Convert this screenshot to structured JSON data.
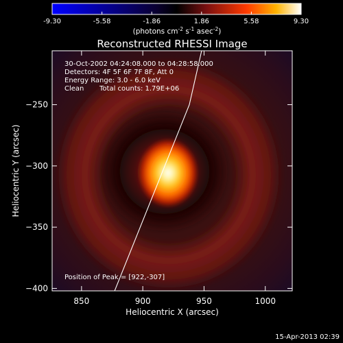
{
  "colorbar": {
    "ticks": [
      "-9.30",
      "-5.58",
      "-1.86",
      "1.86",
      "5.58",
      "9.30"
    ],
    "unit_label": {
      "pre": "(photons cm",
      "sup1": "-2",
      "mid": " s",
      "sup2": "-1",
      "mid2": " asec",
      "sup3": "-2",
      "post": ")"
    },
    "range": [
      -9.3,
      9.3
    ],
    "colors": [
      "#0000ff",
      "#000000",
      "#7a1010",
      "#ff3a00",
      "#ffb300",
      "#ffffff"
    ]
  },
  "annotations": {
    "line1": "30-Oct-2002 04:24:08.000 to 04:28:58.000",
    "line2": "Detectors: 4F 5F 6F 7F 8F, Att 0",
    "line3": "Energy Range: 3.0 - 6.0 keV",
    "line4_a": "Clean",
    "line4_b": "Total counts: 1.79E+06",
    "peak": "Position of Peak = [922,-307]"
  },
  "timestamp": "15-Apr-2013 02:39",
  "chart_data": {
    "type": "heatmap",
    "title": "Reconstructed RHESSI Image",
    "xlabel": "Heliocentric X (arcsec)",
    "ylabel": "Heliocentric Y (arcsec)",
    "xlim": [
      826,
      1022
    ],
    "ylim": [
      -402,
      -206
    ],
    "x_ticks": [
      850,
      900,
      950,
      1000
    ],
    "y_ticks": [
      -250,
      -300,
      -350,
      -400
    ],
    "x_tick_labels": [
      "850",
      "900",
      "950",
      "1000"
    ],
    "y_tick_labels": [
      "−250",
      "−300",
      "−350",
      "−400"
    ],
    "peak_position": [
      922,
      -307
    ],
    "limb_line": [
      [
        877,
        -402
      ],
      [
        938,
        -250
      ],
      [
        948,
        -206
      ]
    ]
  }
}
